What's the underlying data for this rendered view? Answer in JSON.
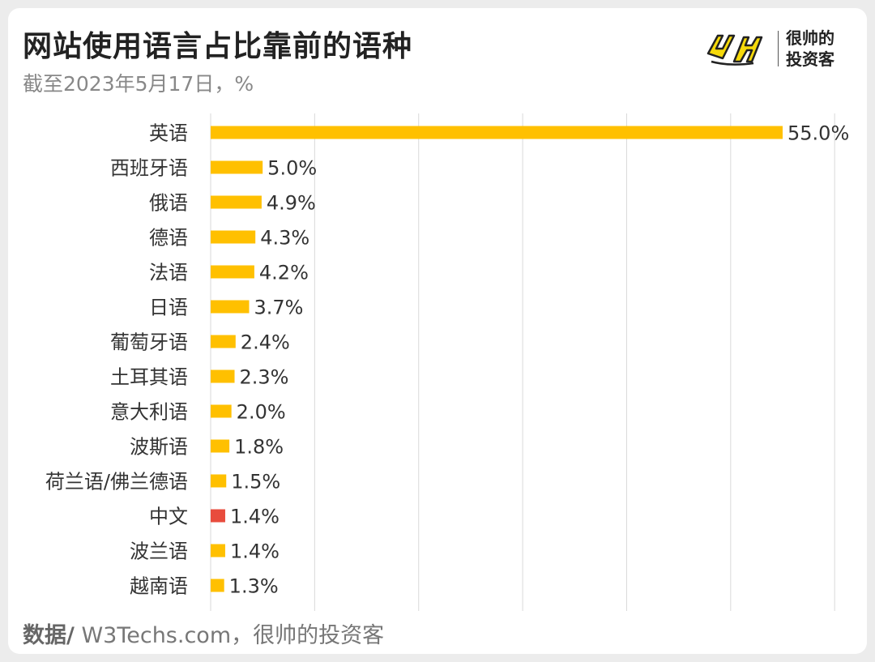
{
  "header": {
    "title": "网站使用语言占比靠前的语种",
    "subtitle": "截至2023年5月17日，%"
  },
  "logo": {
    "line1": "很帅的",
    "line2": "投资客"
  },
  "footer": {
    "source_label": "数据/",
    "source_text": " W3Techs.com，很帅的投资客"
  },
  "colors": {
    "bar": "#FFC000",
    "highlight": "#E84C3D",
    "grid": "#d9d9d9"
  },
  "chart_data": {
    "type": "bar",
    "orientation": "horizontal",
    "title": "网站使用语言占比靠前的语种",
    "subtitle": "截至2023年5月17日，%",
    "categories": [
      "英语",
      "西班牙语",
      "俄语",
      "德语",
      "法语",
      "日语",
      "葡萄牙语",
      "土耳其语",
      "意大利语",
      "波斯语",
      "荷兰语/佛兰德语",
      "中文",
      "波兰语",
      "越南语"
    ],
    "values": [
      55.0,
      5.0,
      4.9,
      4.3,
      4.2,
      3.7,
      2.4,
      2.3,
      2.0,
      1.8,
      1.5,
      1.4,
      1.4,
      1.3
    ],
    "labels": [
      "55.0%",
      "5.0%",
      "4.9%",
      "4.3%",
      "4.2%",
      "3.7%",
      "2.4%",
      "2.3%",
      "2.0%",
      "1.8%",
      "1.5%",
      "1.4%",
      "1.4%",
      "1.3%"
    ],
    "highlight_category": "中文",
    "xlim": [
      0,
      60
    ],
    "grid": true,
    "legend": "none"
  }
}
